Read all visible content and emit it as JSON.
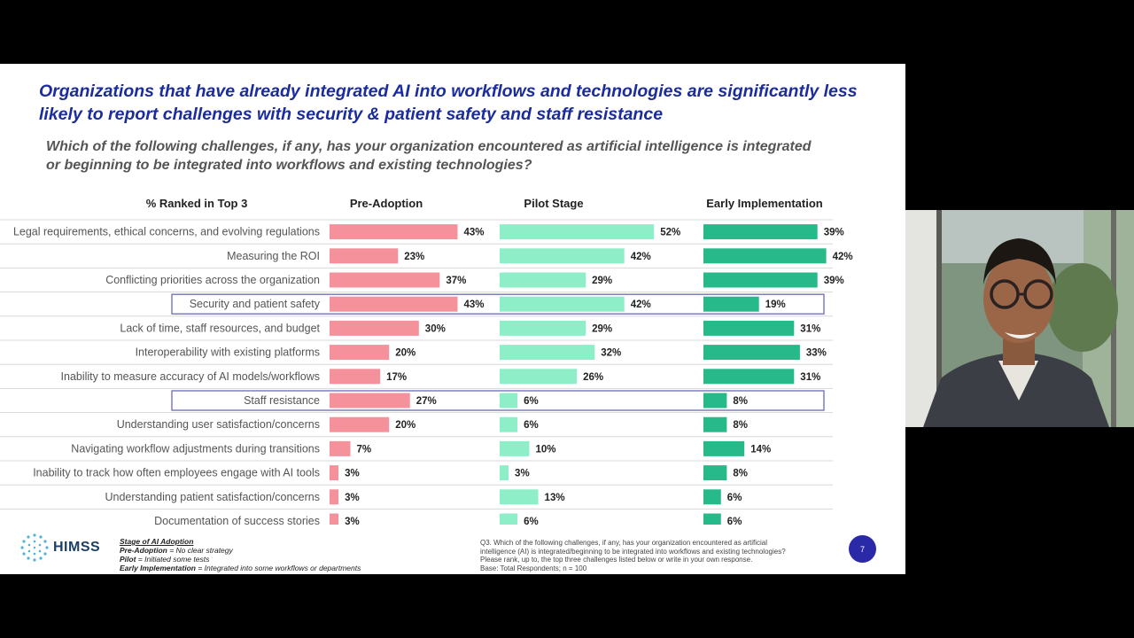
{
  "slide": {
    "title": "Organizations that have already integrated AI into workflows and technologies are significantly less likely to report challenges with security & patient safety and staff resistance",
    "question": "Which of the following challenges, if any, has your organization encountered as artificial intelligence is integrated or beginning to be integrated into workflows and existing technologies?",
    "page_number": "7",
    "logo_text": "HIMSS",
    "legend": {
      "heading": "Stage of AI Adoption",
      "items": [
        {
          "term": "Pre-Adoption",
          "definition": " = No clear strategy"
        },
        {
          "term": "Pilot",
          "definition": " = Initiated some tests"
        },
        {
          "term": "Early Implementation",
          "definition": " = Integrated into some workflows or departments"
        }
      ]
    },
    "footnote": [
      "Q3. Which of the following challenges, if any, has your organization encountered as artificial",
      "intelligence (AI) is integrated/beginning to be integrated into workflows and existing technologies?",
      "Please rank, up to, the top three challenges listed below or write in your own response.",
      "Base: Total Respondents; n = 100"
    ]
  },
  "chart_data": {
    "type": "bar",
    "orientation": "horizontal",
    "label_header": "% Ranked in Top 3",
    "categories": [
      "Legal requirements, ethical concerns, and evolving regulations",
      "Measuring the ROI",
      "Conflicting priorities across the organization",
      "Security and patient safety",
      "Lack of time, staff resources, and budget",
      "Interoperability with existing platforms",
      "Inability to measure accuracy of AI models/workflows",
      "Staff resistance",
      "Understanding user satisfaction/concerns",
      "Navigating workflow adjustments during transitions",
      "Inability to track how often employees engage with AI tools",
      "Understanding patient satisfaction/concerns",
      "Documentation of success stories"
    ],
    "series": [
      {
        "name": "Pre-Adoption",
        "color": "#f4919b",
        "values": [
          43,
          23,
          37,
          43,
          30,
          20,
          17,
          27,
          20,
          7,
          3,
          3,
          3
        ]
      },
      {
        "name": "Pilot Stage",
        "color": "#8deec8",
        "values": [
          52,
          42,
          29,
          42,
          29,
          32,
          26,
          6,
          6,
          10,
          3,
          13,
          6
        ]
      },
      {
        "name": "Early Implementation",
        "color": "#27b98a",
        "values": [
          39,
          42,
          39,
          19,
          31,
          33,
          31,
          8,
          8,
          14,
          8,
          6,
          6
        ]
      }
    ],
    "highlighted_categories": [
      "Security and patient safety",
      "Staff resistance"
    ],
    "value_suffix": "%"
  }
}
